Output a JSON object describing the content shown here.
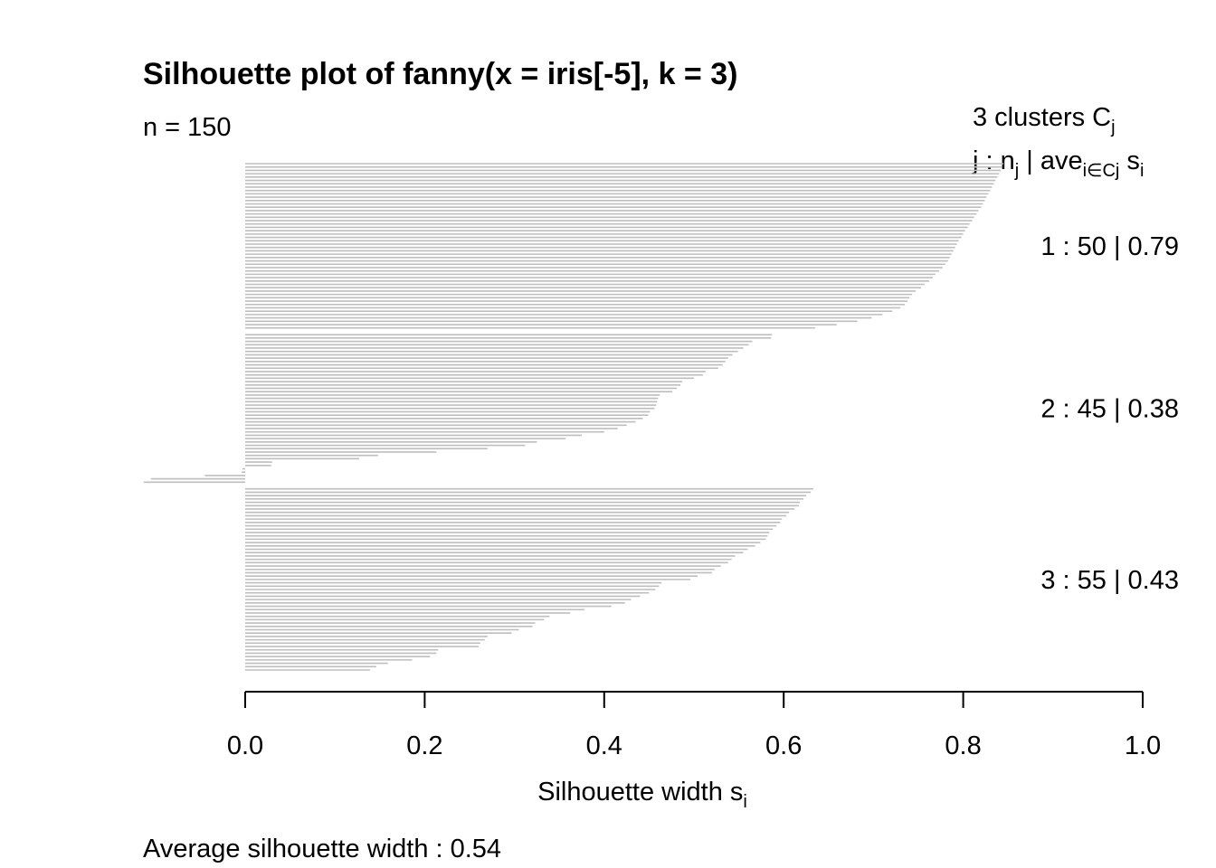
{
  "chart_data": {
    "type": "bar",
    "orientation": "horizontal",
    "title": "Silhouette plot of fanny(x = iris[-5], k = 3)",
    "n_label": "n = 150",
    "legend": {
      "header_line1": {
        "text": "3  clusters  C",
        "sub": "j"
      },
      "header_line2": {
        "prefix": "j :  n",
        "sub1": "j",
        "mid": " | ave",
        "sub2": "i∈Cj",
        "gap": "  s",
        "sub3": "i"
      }
    },
    "xlabel": {
      "text": "Silhouette width s",
      "sub": "i"
    },
    "footer": "Average silhouette width :  0.54",
    "xlim": [
      0,
      1
    ],
    "xticks": [
      "0.0",
      "0.2",
      "0.4",
      "0.6",
      "0.8",
      "1.0"
    ],
    "bar_color": "#bebebe",
    "clusters": [
      {
        "id": 1,
        "label_text": "1 :   50  |  0.79",
        "values": [
          0.845,
          0.843,
          0.842,
          0.84,
          0.838,
          0.836,
          0.834,
          0.832,
          0.83,
          0.828,
          0.826,
          0.824,
          0.822,
          0.82,
          0.817,
          0.815,
          0.812,
          0.81,
          0.807,
          0.805,
          0.802,
          0.8,
          0.798,
          0.795,
          0.793,
          0.791,
          0.789,
          0.787,
          0.785,
          0.783,
          0.78,
          0.777,
          0.773,
          0.769,
          0.766,
          0.762,
          0.757,
          0.753,
          0.747,
          0.743,
          0.74,
          0.738,
          0.735,
          0.73,
          0.721,
          0.71,
          0.698,
          0.682,
          0.659,
          0.635
        ]
      },
      {
        "id": 2,
        "label_text": "2 :   45  |  0.38",
        "values": [
          0.587,
          0.586,
          0.565,
          0.561,
          0.555,
          0.549,
          0.543,
          0.538,
          0.535,
          0.532,
          0.527,
          0.513,
          0.51,
          0.5,
          0.487,
          0.485,
          0.481,
          0.476,
          0.462,
          0.46,
          0.459,
          0.458,
          0.456,
          0.451,
          0.449,
          0.443,
          0.435,
          0.425,
          0.415,
          0.4,
          0.375,
          0.357,
          0.325,
          0.312,
          0.27,
          0.213,
          0.148,
          0.127,
          0.03,
          0.029,
          -0.003,
          -0.004,
          -0.045,
          -0.105,
          -0.113
        ]
      },
      {
        "id": 3,
        "label_text": "3 :   55  |  0.43",
        "values": [
          0.633,
          0.63,
          0.625,
          0.622,
          0.618,
          0.617,
          0.612,
          0.606,
          0.603,
          0.598,
          0.596,
          0.592,
          0.588,
          0.584,
          0.582,
          0.58,
          0.574,
          0.568,
          0.56,
          0.555,
          0.546,
          0.542,
          0.538,
          0.53,
          0.523,
          0.52,
          0.504,
          0.496,
          0.464,
          0.461,
          0.457,
          0.45,
          0.44,
          0.43,
          0.423,
          0.408,
          0.378,
          0.362,
          0.339,
          0.333,
          0.323,
          0.32,
          0.305,
          0.297,
          0.27,
          0.267,
          0.262,
          0.26,
          0.215,
          0.213,
          0.206,
          0.186,
          0.159,
          0.146,
          0.139
        ]
      }
    ]
  }
}
